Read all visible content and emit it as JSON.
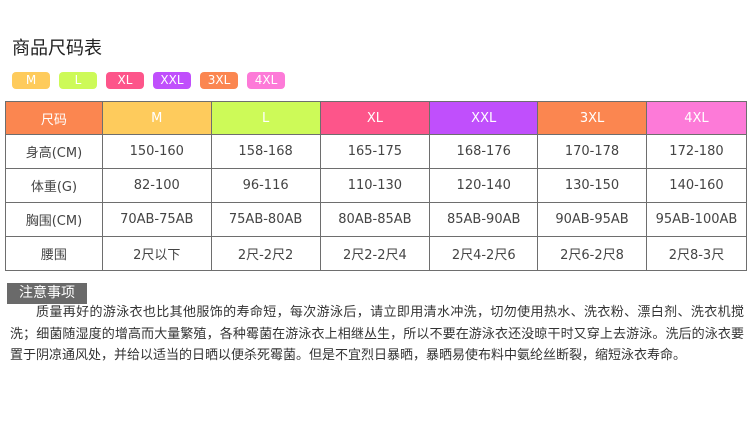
{
  "title": "商品尺码表",
  "badges": [
    {
      "label": "M",
      "color": "#fecb5c"
    },
    {
      "label": "L",
      "color": "#cdfa58"
    },
    {
      "label": "XL",
      "color": "#fd558a"
    },
    {
      "label": "XXL",
      "color": "#c04ffc"
    },
    {
      "label": "3XL",
      "color": "#fb8650"
    },
    {
      "label": "4XL",
      "color": "#fd7ad8"
    }
  ],
  "table": {
    "header": [
      "尺码",
      "M",
      "L",
      "XL",
      "XXL",
      "3XL",
      "4XL"
    ],
    "header_colors": [
      "#fb8650",
      "#fecb5c",
      "#cdfa58",
      "#fd558a",
      "#c04ffc",
      "#fb8650",
      "#fd7ad8"
    ],
    "rows": [
      [
        "身高(CM)",
        "150-160",
        "158-168",
        "165-175",
        "168-176",
        "170-178",
        "172-180"
      ],
      [
        "体重(G)",
        "82-100",
        "96-116",
        "110-130",
        "120-140",
        "130-150",
        "140-160"
      ],
      [
        "胸围(CM)",
        "70AB-75AB",
        "75AB-80AB",
        "80AB-85AB",
        "85AB-90AB",
        "90AB-95AB",
        "95AB-100AB"
      ],
      [
        "腰围",
        "2尺以下",
        "2尺-2尺2",
        "2尺2-2尺4",
        "2尺4-2尺6",
        "2尺6-2尺8",
        "2尺8-3尺"
      ]
    ]
  },
  "notes": {
    "heading": "注意事项",
    "text": "质量再好的游泳衣也比其他服饰的寿命短，每次游泳后，请立即用清水冲洗，切勿使用热水、洗衣粉、漂白剂、洗衣机搅洗；细菌随湿度的增高而大量繁殖，各种霉菌在游泳衣上相继丛生，所以不要在游泳衣还没晾干时又穿上去游泳。洗后的泳衣要置于阴凉通风处，并给以适当的日晒以便杀死霉菌。但是不宜烈日暴晒，暴晒易使布料中氨纶丝断裂，缩短泳衣寿命。"
  }
}
